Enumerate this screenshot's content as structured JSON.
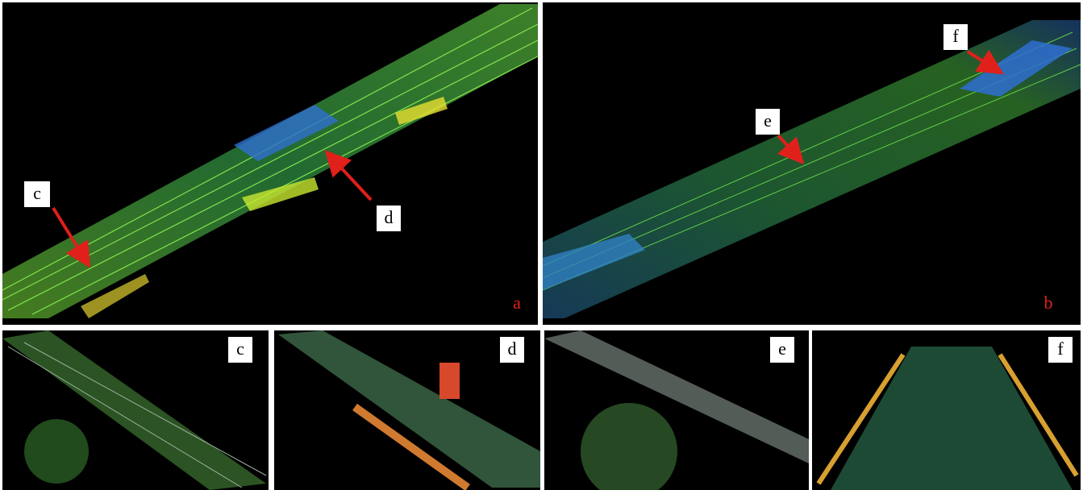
{
  "overview_panels": [
    {
      "label": "a",
      "callouts": [
        "c",
        "d"
      ]
    },
    {
      "label": "b",
      "callouts": [
        "e",
        "f"
      ]
    }
  ],
  "detail_panels": [
    {
      "label": "c"
    },
    {
      "label": "d"
    },
    {
      "label": "e"
    },
    {
      "label": "f"
    }
  ]
}
